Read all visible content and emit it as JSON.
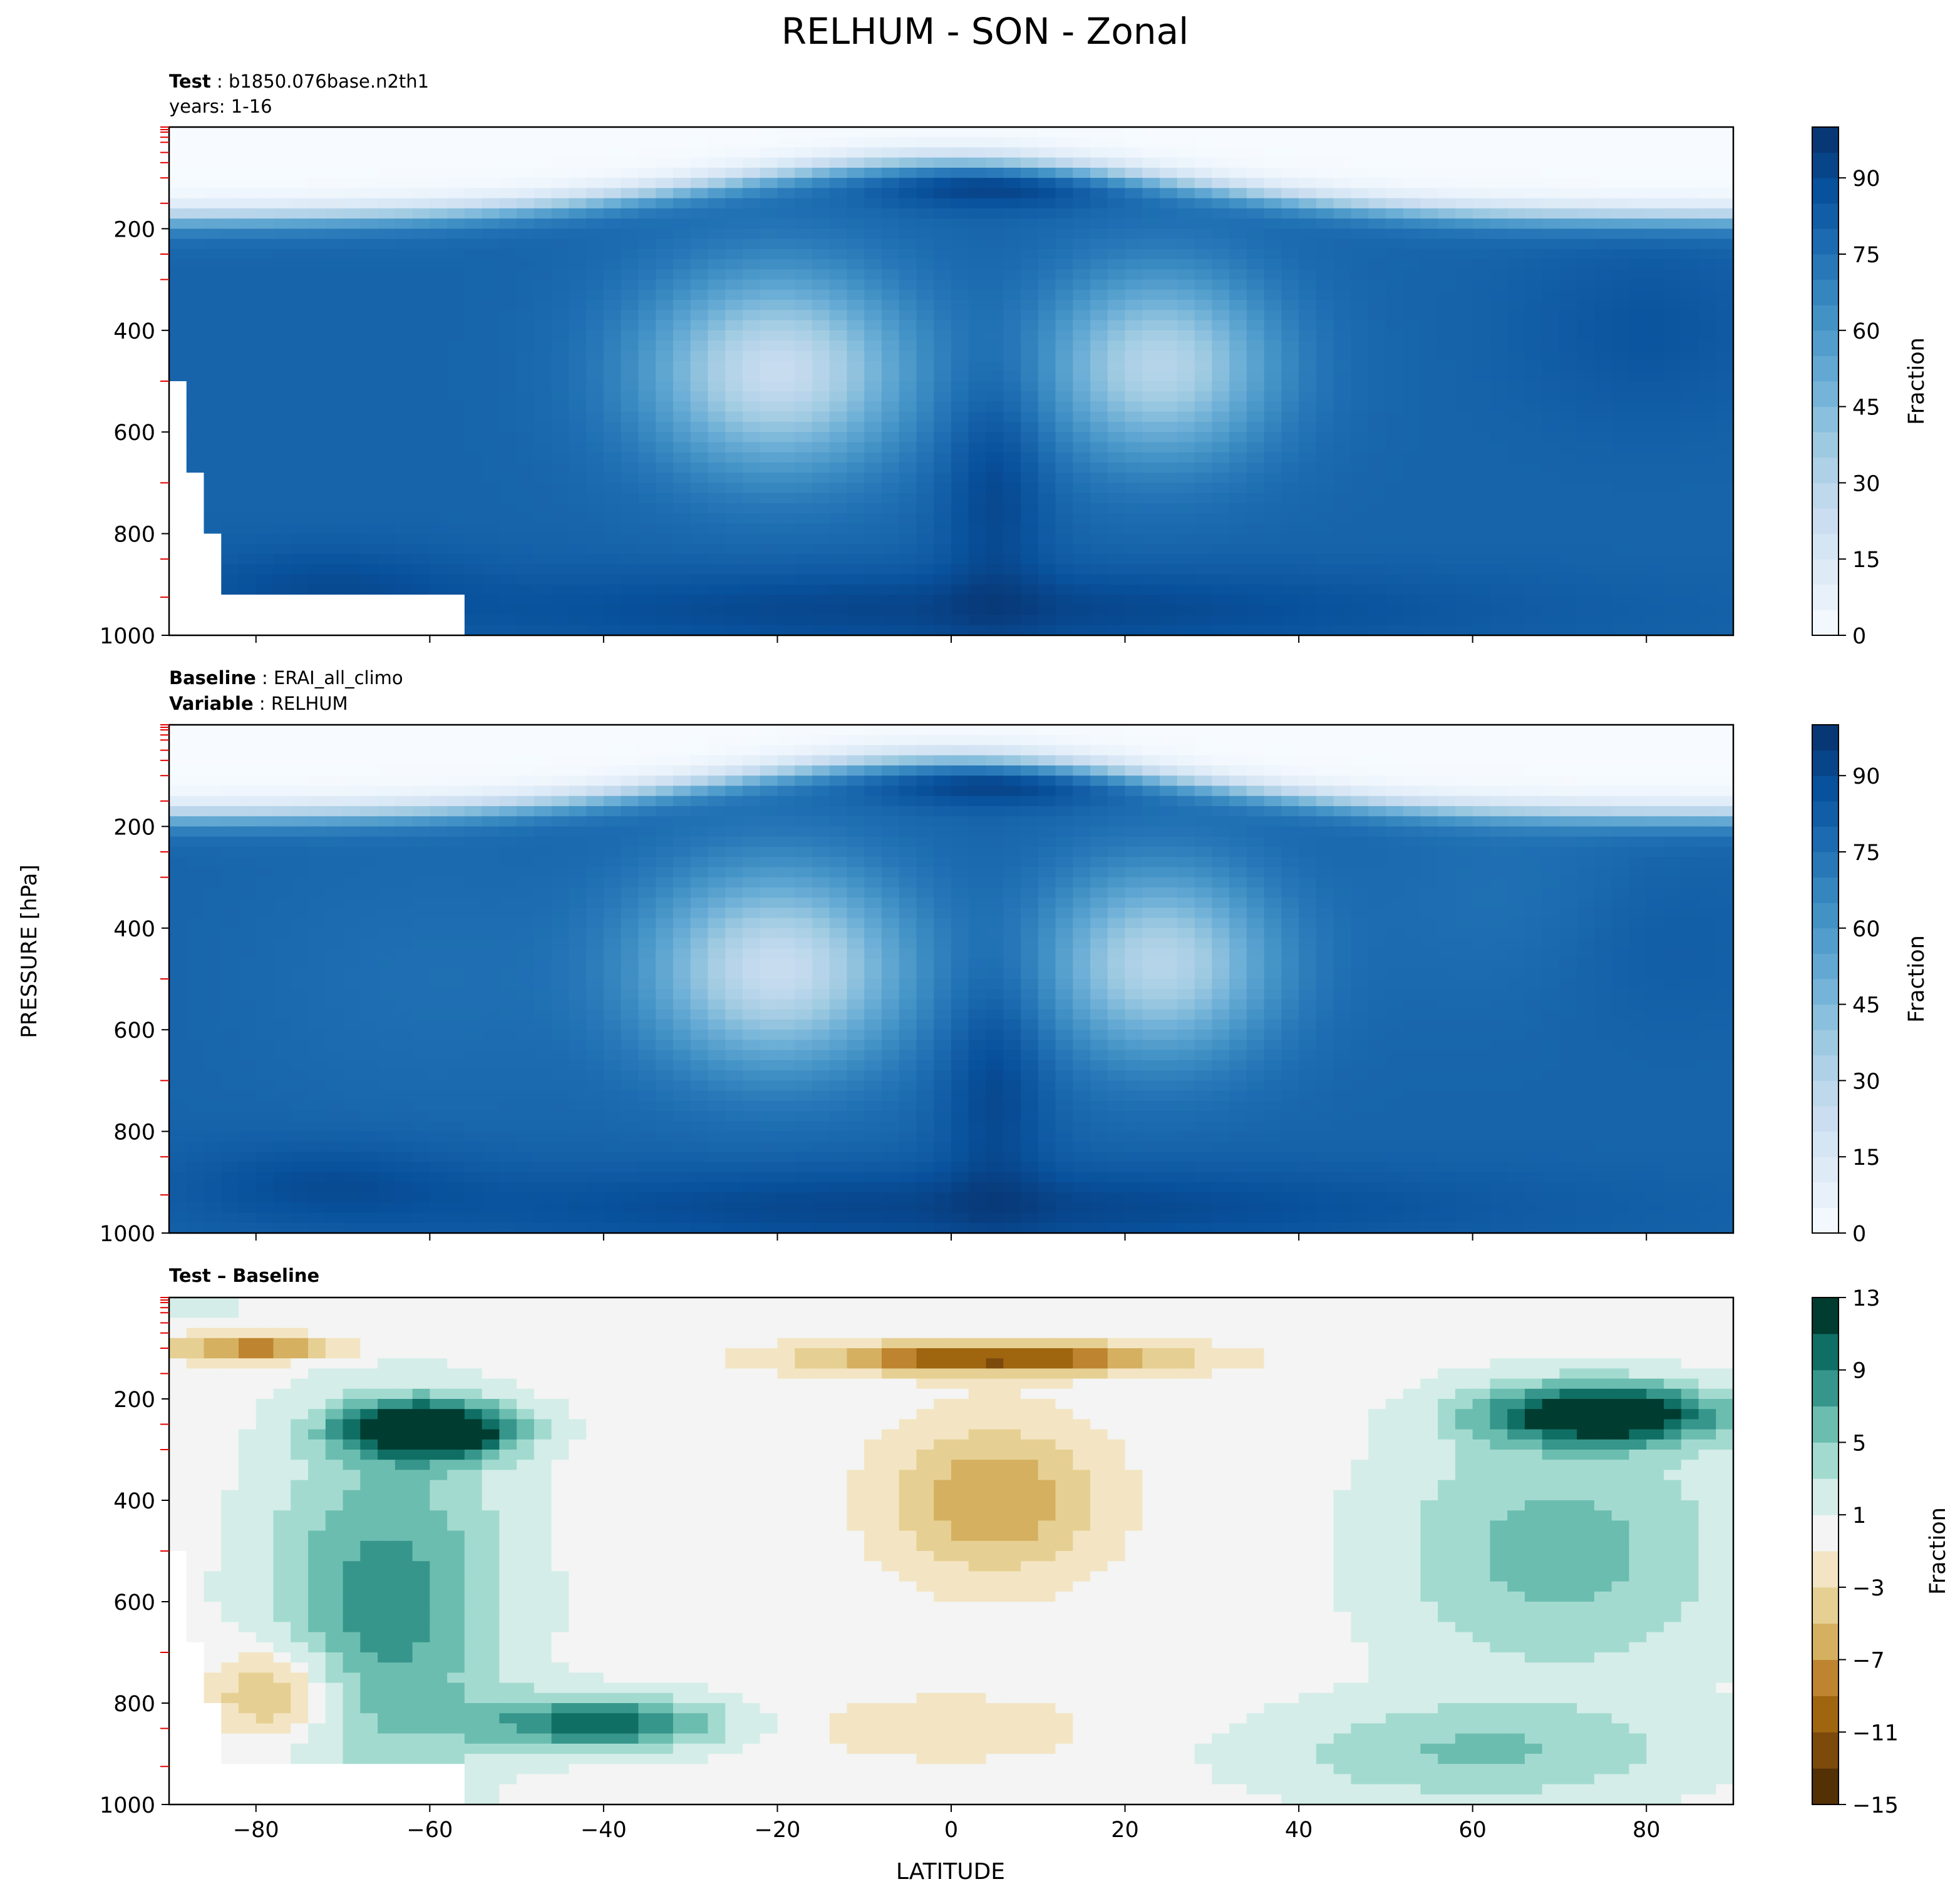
{
  "figure": {
    "title": "RELHUM - SON - Zonal",
    "xlabel": "LATITUDE",
    "ylabel": "PRESSURE [hPa]"
  },
  "chart_data": [
    {
      "type": "heatmap",
      "panel": "test",
      "header": [
        {
          "bold": "Test",
          "sep": ":",
          "text": "b1850.076base.n2th1"
        },
        {
          "bold": "",
          "sep": "",
          "text": "years: 1-16"
        }
      ],
      "x": [
        -80,
        -60,
        -40,
        -20,
        0,
        20,
        40,
        60,
        80
      ],
      "xlim": [
        -90,
        90
      ],
      "y": [
        200,
        400,
        600,
        800,
        1000
      ],
      "ylim": [
        0,
        1000
      ],
      "y_inverted": true,
      "colorbar": {
        "label": "Fraction",
        "ticks": [
          0,
          15,
          30,
          45,
          60,
          75,
          90
        ],
        "range": [
          0,
          100
        ],
        "colormap": "Blues",
        "colors": [
          "#f7fbff",
          "#deebf7",
          "#c6dbef",
          "#9ecae1",
          "#6baed6",
          "#4292c6",
          "#2171b5",
          "#08519c",
          "#08306b"
        ]
      }
    },
    {
      "type": "heatmap",
      "panel": "baseline",
      "header": [
        {
          "bold": "Baseline",
          "sep": ":",
          "text": "ERAI_all_climo"
        },
        {
          "bold": "Variable",
          "sep": ":",
          "text": "RELHUM"
        }
      ],
      "x": [
        -80,
        -60,
        -40,
        -20,
        0,
        20,
        40,
        60,
        80
      ],
      "xlim": [
        -90,
        90
      ],
      "y": [
        200,
        400,
        600,
        800,
        1000
      ],
      "ylim": [
        0,
        1000
      ],
      "y_inverted": true,
      "colorbar": {
        "label": "Fraction",
        "ticks": [
          0,
          15,
          30,
          45,
          60,
          75,
          90
        ],
        "range": [
          0,
          100
        ],
        "colormap": "Blues",
        "colors": [
          "#f7fbff",
          "#deebf7",
          "#c6dbef",
          "#9ecae1",
          "#6baed6",
          "#4292c6",
          "#2171b5",
          "#08519c",
          "#08306b"
        ]
      }
    },
    {
      "type": "heatmap",
      "panel": "difference",
      "header": [
        {
          "bold": "Test – Baseline",
          "sep": "",
          "text": ""
        }
      ],
      "x": [
        -80,
        -60,
        -40,
        -20,
        0,
        20,
        40,
        60,
        80
      ],
      "xlim": [
        -90,
        90
      ],
      "y": [
        200,
        400,
        600,
        800,
        1000
      ],
      "ylim": [
        0,
        1000
      ],
      "y_inverted": true,
      "colorbar": {
        "label": "Fraction",
        "ticks": [
          13,
          9,
          5,
          1,
          -3,
          -7,
          -11,
          -15
        ],
        "range": [
          -15,
          13
        ],
        "colormap": "BrBG",
        "levels": [
          -15,
          -13,
          -11,
          -9,
          -7,
          -5,
          -3,
          -1,
          1,
          3,
          5,
          7,
          9,
          11,
          13
        ],
        "colors": [
          "#543005",
          "#7c4a0b",
          "#a0650f",
          "#bf842f",
          "#d5b061",
          "#e6cf92",
          "#f3e5c3",
          "#f3f4f3",
          "#d4ede8",
          "#a3dad0",
          "#6bbdaf",
          "#36968b",
          "#0f6f64",
          "#003c30"
        ]
      }
    }
  ]
}
